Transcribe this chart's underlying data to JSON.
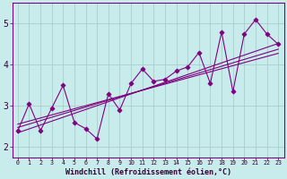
{
  "title": "",
  "xlabel": "Windchill (Refroidissement éolien,°C)",
  "ylabel": "",
  "bg_color": "#c8ecec",
  "line_color": "#800080",
  "grid_color": "#aacccc",
  "x_ticks": [
    0,
    1,
    2,
    3,
    4,
    5,
    6,
    7,
    8,
    9,
    10,
    11,
    12,
    13,
    14,
    15,
    16,
    17,
    18,
    19,
    20,
    21,
    22,
    23
  ],
  "y_ticks": [
    2,
    3,
    4,
    5
  ],
  "xlim": [
    -0.5,
    23.5
  ],
  "ylim": [
    1.75,
    5.5
  ],
  "data_x": [
    0,
    1,
    2,
    3,
    4,
    5,
    6,
    7,
    8,
    9,
    10,
    11,
    12,
    13,
    14,
    15,
    16,
    17,
    18,
    19,
    20,
    21,
    22,
    23
  ],
  "data_y": [
    2.4,
    3.05,
    2.4,
    2.95,
    3.5,
    2.6,
    2.45,
    2.2,
    3.3,
    2.9,
    3.55,
    3.9,
    3.6,
    3.65,
    3.85,
    3.95,
    4.3,
    3.55,
    4.8,
    3.35,
    4.75,
    5.1,
    4.75,
    4.5
  ],
  "regr_lines": [
    [
      2.35,
      4.52
    ],
    [
      2.48,
      4.38
    ],
    [
      2.56,
      4.28
    ]
  ]
}
